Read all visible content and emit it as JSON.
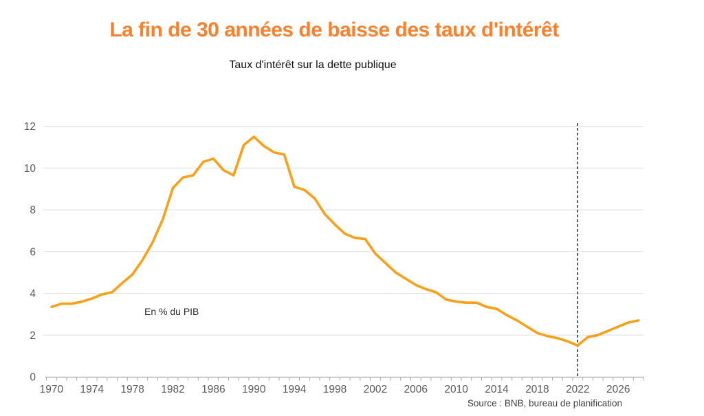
{
  "page": {
    "background": "#ffffff"
  },
  "header": {
    "title": "La fin de 30 années de baisse des taux d'intérêt",
    "title_color": "#f8812e",
    "subtitle": "Taux d'intérêt sur la dette publique",
    "subtitle_color": "#111111"
  },
  "annotations": {
    "unit_label": "En % du PIB",
    "source": "Source : BNB, bureau de planification"
  },
  "chart_data": {
    "type": "line",
    "title": "Taux d'intérêt sur la dette publique",
    "xlabel": "",
    "ylabel": "En % du PIB",
    "ylim": [
      0,
      12
    ],
    "yticks": [
      0,
      2,
      4,
      6,
      8,
      10,
      12
    ],
    "xticks": [
      1970,
      1974,
      1978,
      1982,
      1986,
      1990,
      1994,
      1998,
      2002,
      2006,
      2010,
      2014,
      2018,
      2022,
      2026
    ],
    "grid": "horizontal",
    "legend": "none",
    "gridline_color": "#d9d9d9",
    "axis_color": "#a6a6a6",
    "tick_label_color": "#595959",
    "x": [
      1970,
      1971,
      1972,
      1973,
      1974,
      1975,
      1976,
      1977,
      1978,
      1979,
      1980,
      1981,
      1982,
      1983,
      1984,
      1985,
      1986,
      1987,
      1988,
      1989,
      1990,
      1991,
      1992,
      1993,
      1994,
      1995,
      1996,
      1997,
      1998,
      1999,
      2000,
      2001,
      2002,
      2003,
      2004,
      2005,
      2006,
      2007,
      2008,
      2009,
      2010,
      2011,
      2012,
      2013,
      2014,
      2015,
      2016,
      2017,
      2018,
      2019,
      2020,
      2021,
      2022,
      2023,
      2024,
      2025,
      2026,
      2027,
      2028
    ],
    "series": [
      {
        "name": "Taux d'intérêt sur la dette publique",
        "color": "#f9a01b",
        "values": [
          3.35,
          3.5,
          3.5,
          3.6,
          3.75,
          3.95,
          4.05,
          4.5,
          4.9,
          5.6,
          6.45,
          7.55,
          9.05,
          9.55,
          9.65,
          10.3,
          10.45,
          9.9,
          9.65,
          11.1,
          11.5,
          11.05,
          10.75,
          10.65,
          9.1,
          8.95,
          8.55,
          7.8,
          7.3,
          6.85,
          6.65,
          6.6,
          5.9,
          5.45,
          5.0,
          4.7,
          4.4,
          4.2,
          4.05,
          3.7,
          3.6,
          3.55,
          3.55,
          3.35,
          3.25,
          2.95,
          2.7,
          2.4,
          2.1,
          1.95,
          1.85,
          1.7,
          1.5,
          1.9,
          2.0,
          2.2,
          2.4,
          2.6,
          2.7
        ]
      }
    ],
    "vline": {
      "x": 2022,
      "style": "dashed",
      "color": "#000000"
    }
  }
}
